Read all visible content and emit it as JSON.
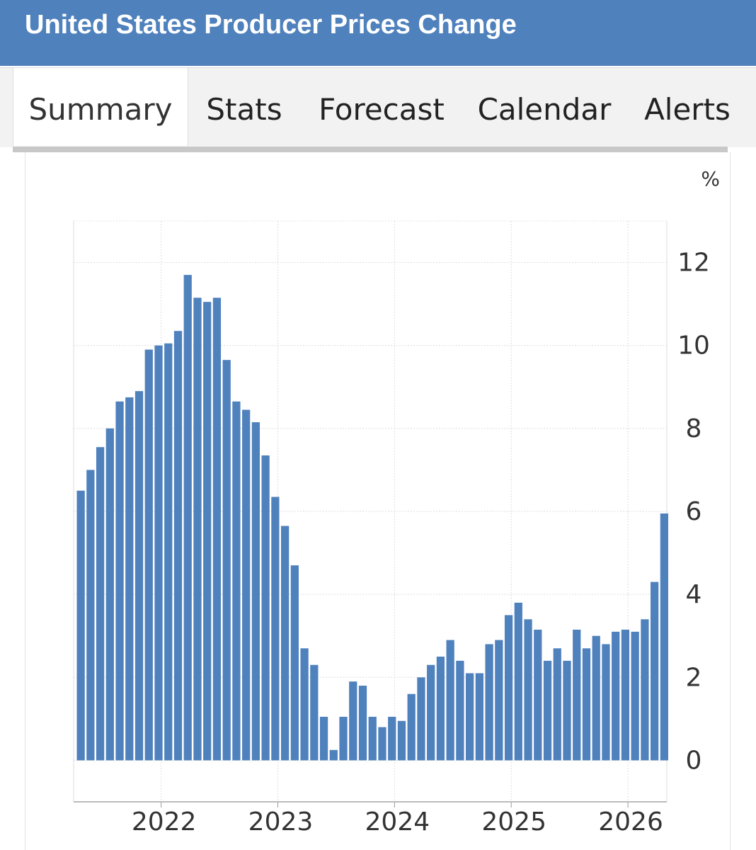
{
  "header": {
    "title": "United States Producer Prices Change"
  },
  "tabs": [
    "Summary",
    "Stats",
    "Forecast",
    "Calendar",
    "Alerts"
  ],
  "chart_data": {
    "type": "bar",
    "ylabel": "%",
    "color": "#4f81bd",
    "grid": true,
    "categories": [
      null,
      null,
      null,
      null,
      null,
      null,
      null,
      null,
      null,
      "2022",
      null,
      null,
      null,
      null,
      null,
      null,
      null,
      null,
      null,
      null,
      null,
      "2023",
      null,
      null,
      null,
      null,
      null,
      null,
      null,
      null,
      null,
      null,
      null,
      "2024",
      null,
      null,
      null,
      null,
      null,
      null,
      null,
      null,
      null,
      null,
      null,
      "2025",
      null,
      null,
      null,
      null,
      null,
      null,
      null,
      null,
      null,
      null,
      null,
      "2026",
      null,
      null,
      null
    ],
    "values": [
      6.5,
      7.0,
      7.55,
      8.0,
      8.65,
      8.75,
      8.9,
      9.9,
      10.0,
      10.05,
      10.35,
      11.7,
      11.15,
      11.05,
      11.15,
      9.65,
      8.65,
      8.45,
      8.15,
      7.35,
      6.35,
      5.65,
      4.7,
      2.7,
      2.3,
      1.05,
      0.25,
      1.05,
      1.9,
      1.8,
      1.05,
      0.8,
      1.05,
      0.95,
      1.6,
      2.0,
      2.3,
      2.5,
      2.9,
      2.4,
      2.1,
      2.1,
      2.8,
      2.9,
      3.5,
      3.8,
      3.4,
      3.15,
      2.4,
      2.7,
      2.4,
      3.15,
      2.7,
      3.0,
      2.8,
      3.1,
      3.15,
      3.1,
      3.4,
      4.3,
      5.95
    ],
    "ylim": [
      -1,
      13
    ],
    "yticks": [
      0,
      2,
      4,
      6,
      8,
      10,
      12
    ]
  }
}
